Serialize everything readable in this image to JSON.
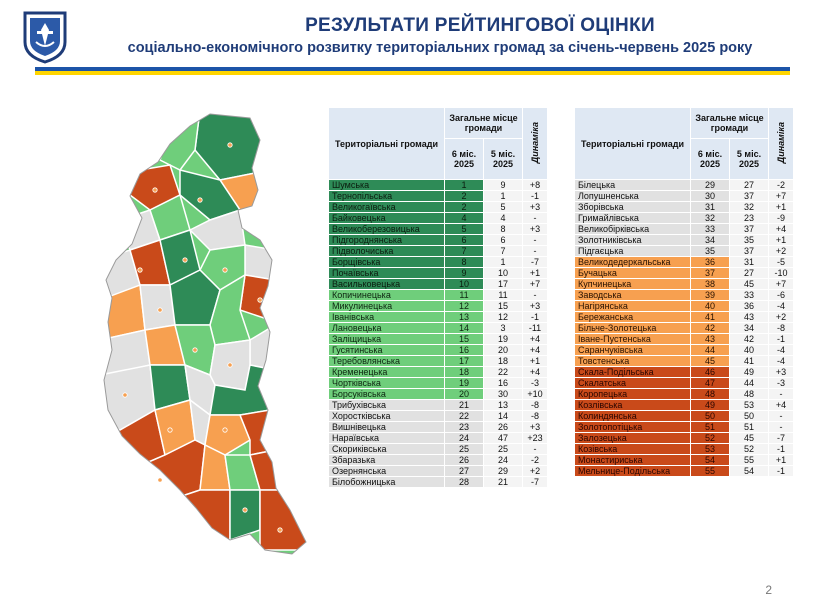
{
  "header": {
    "title": "РЕЗУЛЬТАТИ РЕЙТИНГОВОЇ ОЦІНКИ",
    "subtitle": "соціально-економічного розвитку територіальних громад за січень-червень 2025 року"
  },
  "table_headers": {
    "name": "Територіальні громади",
    "group": "Загальне місце громади",
    "col6": "6 міс. 2025",
    "col5": "5 міс. 2025",
    "dynamics": "Динаміка"
  },
  "colors": {
    "dark_green": "#2e8b57",
    "light_green": "#6fce7b",
    "gray": "#e1e1e1",
    "orange": "#f7a050",
    "red": "#c94a1a",
    "header_blue": "#1f3c78",
    "stripe_blue": "#1d54a8",
    "stripe_yellow": "#ffd500"
  },
  "left_table": [
    {
      "name": "Шумська",
      "m6": "1",
      "m5": "9",
      "dyn": "+8",
      "color": "dg"
    },
    {
      "name": "Тернопільська",
      "m6": "2",
      "m5": "1",
      "dyn": "-1",
      "color": "dg"
    },
    {
      "name": "Великогаївська",
      "m6": "2",
      "m5": "5",
      "dyn": "+3",
      "color": "dg"
    },
    {
      "name": "Байковецька",
      "m6": "4",
      "m5": "4",
      "dyn": "-",
      "color": "dg"
    },
    {
      "name": "Великоберезовицька",
      "m6": "5",
      "m5": "8",
      "dyn": "+3",
      "color": "dg"
    },
    {
      "name": "Підгороднянська",
      "m6": "6",
      "m5": "6",
      "dyn": "-",
      "color": "dg"
    },
    {
      "name": "Підволочиська",
      "m6": "7",
      "m5": "7",
      "dyn": "-",
      "color": "dg"
    },
    {
      "name": "Борщівська",
      "m6": "8",
      "m5": "1",
      "dyn": "-7",
      "color": "dg"
    },
    {
      "name": "Почаївська",
      "m6": "9",
      "m5": "10",
      "dyn": "+1",
      "color": "dg"
    },
    {
      "name": "Васильковецька",
      "m6": "10",
      "m5": "17",
      "dyn": "+7",
      "color": "dg"
    },
    {
      "name": "Копичинецька",
      "m6": "11",
      "m5": "11",
      "dyn": "-",
      "color": "lg"
    },
    {
      "name": "Микулинецька",
      "m6": "12",
      "m5": "15",
      "dyn": "+3",
      "color": "lg"
    },
    {
      "name": "Іванівська",
      "m6": "13",
      "m5": "12",
      "dyn": "-1",
      "color": "lg"
    },
    {
      "name": "Лановецька",
      "m6": "14",
      "m5": "3",
      "dyn": "-11",
      "color": "lg"
    },
    {
      "name": "Заліщицька",
      "m6": "15",
      "m5": "19",
      "dyn": "+4",
      "color": "lg"
    },
    {
      "name": "Гусятинська",
      "m6": "16",
      "m5": "20",
      "dyn": "+4",
      "color": "lg"
    },
    {
      "name": "Теребовлянська",
      "m6": "17",
      "m5": "18",
      "dyn": "+1",
      "color": "lg"
    },
    {
      "name": "Кременецька",
      "m6": "18",
      "m5": "22",
      "dyn": "+4",
      "color": "lg"
    },
    {
      "name": "Чортківська",
      "m6": "19",
      "m5": "16",
      "dyn": "-3",
      "color": "lg"
    },
    {
      "name": "Борсуківська",
      "m6": "20",
      "m5": "30",
      "dyn": "+10",
      "color": "lg"
    },
    {
      "name": "Трибухівська",
      "m6": "21",
      "m5": "13",
      "dyn": "-8",
      "color": "gy"
    },
    {
      "name": "Хоростківська",
      "m6": "22",
      "m5": "14",
      "dyn": "-8",
      "color": "gy"
    },
    {
      "name": "Вишнівецька",
      "m6": "23",
      "m5": "26",
      "dyn": "+3",
      "color": "gy"
    },
    {
      "name": "Нараївська",
      "m6": "24",
      "m5": "47",
      "dyn": "+23",
      "color": "gy"
    },
    {
      "name": "Скориківська",
      "m6": "25",
      "m5": "25",
      "dyn": "-",
      "color": "gy"
    },
    {
      "name": "Збаразька",
      "m6": "26",
      "m5": "24",
      "dyn": "-2",
      "color": "gy"
    },
    {
      "name": "Озернянська",
      "m6": "27",
      "m5": "29",
      "dyn": "+2",
      "color": "gy"
    },
    {
      "name": "Білобожницька",
      "m6": "28",
      "m5": "21",
      "dyn": "-7",
      "color": "gy"
    }
  ],
  "right_table": [
    {
      "name": "Білецька",
      "m6": "29",
      "m5": "27",
      "dyn": "-2",
      "color": "gy"
    },
    {
      "name": "Лопушненська",
      "m6": "30",
      "m5": "37",
      "dyn": "+7",
      "color": "gy"
    },
    {
      "name": "Зборівська",
      "m6": "31",
      "m5": "32",
      "dyn": "+1",
      "color": "gy"
    },
    {
      "name": "Гримайлівська",
      "m6": "32",
      "m5": "23",
      "dyn": "-9",
      "color": "gy"
    },
    {
      "name": "Великобірківська",
      "m6": "33",
      "m5": "37",
      "dyn": "+4",
      "color": "gy"
    },
    {
      "name": "Золотниківська",
      "m6": "34",
      "m5": "35",
      "dyn": "+1",
      "color": "gy"
    },
    {
      "name": "Підгаєцька",
      "m6": "35",
      "m5": "37",
      "dyn": "+2",
      "color": "gy"
    },
    {
      "name": "Великодедеркальська",
      "m6": "36",
      "m5": "31",
      "dyn": "-5",
      "color": "or"
    },
    {
      "name": "Бучацька",
      "m6": "37",
      "m5": "27",
      "dyn": "-10",
      "color": "or"
    },
    {
      "name": "Купчинецька",
      "m6": "38",
      "m5": "45",
      "dyn": "+7",
      "color": "or"
    },
    {
      "name": "Заводська",
      "m6": "39",
      "m5": "33",
      "dyn": "-6",
      "color": "or"
    },
    {
      "name": "Нагірянська",
      "m6": "40",
      "m5": "36",
      "dyn": "-4",
      "color": "or"
    },
    {
      "name": "Бережанська",
      "m6": "41",
      "m5": "43",
      "dyn": "+2",
      "color": "or"
    },
    {
      "name": "Більче-Золотецька",
      "m6": "42",
      "m5": "34",
      "dyn": "-8",
      "color": "or"
    },
    {
      "name": "Іване-Пустенська",
      "m6": "43",
      "m5": "42",
      "dyn": "-1",
      "color": "or"
    },
    {
      "name": "Саранчуківська",
      "m6": "44",
      "m5": "40",
      "dyn": "-4",
      "color": "or"
    },
    {
      "name": "Товстенська",
      "m6": "45",
      "m5": "41",
      "dyn": "-4",
      "color": "or"
    },
    {
      "name": "Скала-Подільська",
      "m6": "46",
      "m5": "49",
      "dyn": "+3",
      "color": "rd"
    },
    {
      "name": "Скалатська",
      "m6": "47",
      "m5": "44",
      "dyn": "-3",
      "color": "rd"
    },
    {
      "name": "Коропецька",
      "m6": "48",
      "m5": "48",
      "dyn": "-",
      "color": "rd"
    },
    {
      "name": "Козлівська",
      "m6": "49",
      "m5": "53",
      "dyn": "+4",
      "color": "rd"
    },
    {
      "name": "Колиндянська",
      "m6": "50",
      "m5": "50",
      "dyn": "-",
      "color": "rd"
    },
    {
      "name": "Золотопотіцька",
      "m6": "51",
      "m5": "51",
      "dyn": "-",
      "color": "rd"
    },
    {
      "name": "Залозецька",
      "m6": "52",
      "m5": "45",
      "dyn": "-7",
      "color": "rd"
    },
    {
      "name": "Козівська",
      "m6": "53",
      "m5": "52",
      "dyn": "-1",
      "color": "rd"
    },
    {
      "name": "Монастириська",
      "m6": "54",
      "m5": "55",
      "dyn": "+1",
      "color": "rd"
    },
    {
      "name": "Мельнице-Подільська",
      "m6": "55",
      "m5": "54",
      "dyn": "-1",
      "color": "rd"
    }
  ],
  "page_number": "2"
}
